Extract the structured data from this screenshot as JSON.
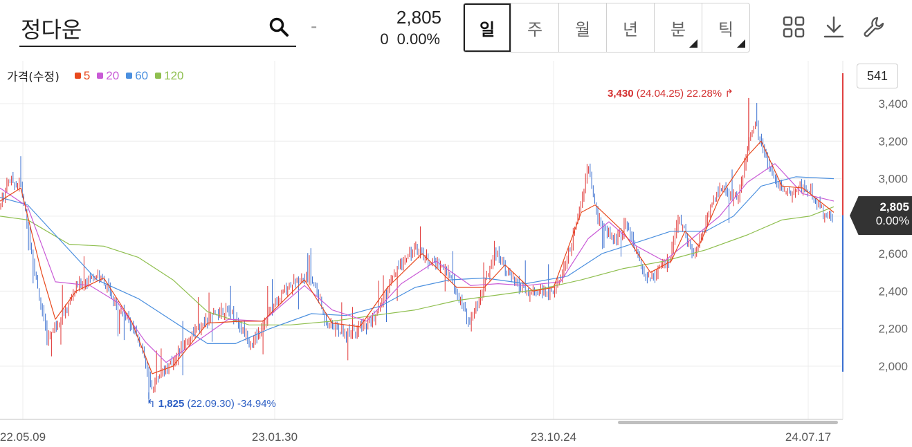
{
  "header": {
    "stock_name": "정다운",
    "dash": "-",
    "price": "2,805",
    "change": "0",
    "change_pct": "0.00%",
    "periods": [
      {
        "label": "일",
        "active": true,
        "has_menu": false
      },
      {
        "label": "주",
        "active": false,
        "has_menu": false
      },
      {
        "label": "월",
        "active": false,
        "has_menu": false
      },
      {
        "label": "년",
        "active": false,
        "has_menu": false
      },
      {
        "label": "분",
        "active": false,
        "has_menu": true
      },
      {
        "label": "틱",
        "active": false,
        "has_menu": true
      }
    ],
    "tools": [
      "grid-icon",
      "download-icon",
      "wrench-icon"
    ]
  },
  "legend": {
    "label": "가격(수정)",
    "items": [
      {
        "name": "5",
        "color": "#e8491d"
      },
      {
        "name": "20",
        "color": "#c95ad6"
      },
      {
        "name": "60",
        "color": "#4a8fdf"
      },
      {
        "name": "120",
        "color": "#8fbf4f"
      }
    ]
  },
  "count_badge": "541",
  "price_tag": {
    "price": "2,805",
    "change": "0.00%"
  },
  "annotations": {
    "high": {
      "value": "3,430",
      "detail": "(24.04.25) 22.28%",
      "arrow": "↱"
    },
    "low": {
      "value": "1,825",
      "detail": "(22.09.30) -34.94%",
      "arrow": "↰"
    }
  },
  "chart_data": {
    "type": "line",
    "ylim": [
      1800,
      3550
    ],
    "y_ticks": [
      2000,
      2200,
      2400,
      2600,
      2800,
      3000,
      3200,
      3400
    ],
    "y_tick_labels": [
      "2,000",
      "2,200",
      "2,400",
      "2,600",
      "2,800",
      "3,000",
      "3,200",
      "3,400"
    ],
    "x_ticks": [
      "22.05.09",
      "23.01.30",
      "23.10.24",
      "24.07.17"
    ],
    "colors": {
      "up": "#e03535",
      "down": "#3a6fd0",
      "ma5": "#e8491d",
      "ma20": "#c95ad6",
      "ma60": "#4a8fdf",
      "ma120": "#8fbf4f"
    },
    "price_path": [
      [
        0,
        2850
      ],
      [
        12,
        3000
      ],
      [
        30,
        2960
      ],
      [
        42,
        2700
      ],
      [
        55,
        2400
      ],
      [
        68,
        2150
      ],
      [
        80,
        2220
      ],
      [
        95,
        2300
      ],
      [
        110,
        2420
      ],
      [
        125,
        2460
      ],
      [
        140,
        2490
      ],
      [
        152,
        2440
      ],
      [
        165,
        2330
      ],
      [
        180,
        2280
      ],
      [
        195,
        2200
      ],
      [
        208,
        2050
      ],
      [
        218,
        1880
      ],
      [
        232,
        1960
      ],
      [
        245,
        2000
      ],
      [
        260,
        2080
      ],
      [
        275,
        2160
      ],
      [
        290,
        2210
      ],
      [
        305,
        2260
      ],
      [
        320,
        2300
      ],
      [
        335,
        2290
      ],
      [
        350,
        2200
      ],
      [
        365,
        2120
      ],
      [
        380,
        2230
      ],
      [
        395,
        2320
      ],
      [
        410,
        2400
      ],
      [
        425,
        2450
      ],
      [
        440,
        2480
      ],
      [
        455,
        2430
      ],
      [
        470,
        2250
      ],
      [
        485,
        2200
      ],
      [
        500,
        2170
      ],
      [
        515,
        2200
      ],
      [
        530,
        2220
      ],
      [
        545,
        2280
      ],
      [
        560,
        2400
      ],
      [
        575,
        2520
      ],
      [
        590,
        2600
      ],
      [
        605,
        2620
      ],
      [
        620,
        2560
      ],
      [
        635,
        2540
      ],
      [
        650,
        2490
      ],
      [
        665,
        2350
      ],
      [
        678,
        2230
      ],
      [
        690,
        2330
      ],
      [
        702,
        2460
      ],
      [
        715,
        2620
      ],
      [
        728,
        2550
      ],
      [
        740,
        2460
      ],
      [
        752,
        2420
      ],
      [
        765,
        2380
      ],
      [
        780,
        2400
      ],
      [
        795,
        2390
      ],
      [
        810,
        2460
      ],
      [
        825,
        2640
      ],
      [
        840,
        2860
      ],
      [
        850,
        3080
      ],
      [
        862,
        2800
      ],
      [
        876,
        2720
      ],
      [
        890,
        2680
      ],
      [
        905,
        2760
      ],
      [
        918,
        2620
      ],
      [
        930,
        2500
      ],
      [
        942,
        2470
      ],
      [
        955,
        2520
      ],
      [
        968,
        2560
      ],
      [
        980,
        2780
      ],
      [
        990,
        2720
      ],
      [
        1002,
        2580
      ],
      [
        1015,
        2720
      ],
      [
        1030,
        2880
      ],
      [
        1045,
        2960
      ],
      [
        1058,
        2900
      ],
      [
        1070,
        2940
      ],
      [
        1082,
        3200
      ],
      [
        1092,
        3290
      ],
      [
        1105,
        3120
      ],
      [
        1118,
        3020
      ],
      [
        1130,
        2960
      ],
      [
        1142,
        2900
      ],
      [
        1155,
        2960
      ],
      [
        1168,
        2940
      ],
      [
        1180,
        2880
      ],
      [
        1192,
        2800
      ],
      [
        1205,
        2805
      ]
    ],
    "ma5": [
      [
        0,
        2880
      ],
      [
        30,
        2950
      ],
      [
        60,
        2500
      ],
      [
        80,
        2250
      ],
      [
        110,
        2400
      ],
      [
        150,
        2470
      ],
      [
        190,
        2240
      ],
      [
        220,
        1960
      ],
      [
        250,
        2000
      ],
      [
        300,
        2230
      ],
      [
        350,
        2240
      ],
      [
        380,
        2240
      ],
      [
        440,
        2460
      ],
      [
        480,
        2230
      ],
      [
        520,
        2210
      ],
      [
        560,
        2420
      ],
      [
        610,
        2600
      ],
      [
        660,
        2420
      ],
      [
        700,
        2420
      ],
      [
        730,
        2540
      ],
      [
        770,
        2400
      ],
      [
        800,
        2420
      ],
      [
        840,
        2820
      ],
      [
        860,
        2860
      ],
      [
        900,
        2720
      ],
      [
        940,
        2500
      ],
      [
        970,
        2560
      ],
      [
        990,
        2720
      ],
      [
        1010,
        2640
      ],
      [
        1040,
        2900
      ],
      [
        1080,
        3120
      ],
      [
        1100,
        3200
      ],
      [
        1130,
        2960
      ],
      [
        1160,
        2950
      ],
      [
        1205,
        2820
      ]
    ],
    "ma20": [
      [
        0,
        2950
      ],
      [
        40,
        2850
      ],
      [
        80,
        2450
      ],
      [
        130,
        2430
      ],
      [
        170,
        2340
      ],
      [
        210,
        2130
      ],
      [
        240,
        2020
      ],
      [
        280,
        2120
      ],
      [
        330,
        2250
      ],
      [
        380,
        2240
      ],
      [
        440,
        2430
      ],
      [
        480,
        2300
      ],
      [
        530,
        2240
      ],
      [
        580,
        2440
      ],
      [
        630,
        2560
      ],
      [
        680,
        2430
      ],
      [
        720,
        2440
      ],
      [
        760,
        2430
      ],
      [
        810,
        2450
      ],
      [
        850,
        2680
      ],
      [
        880,
        2770
      ],
      [
        920,
        2640
      ],
      [
        960,
        2560
      ],
      [
        1000,
        2680
      ],
      [
        1040,
        2800
      ],
      [
        1080,
        2980
      ],
      [
        1120,
        3080
      ],
      [
        1160,
        2920
      ],
      [
        1205,
        2880
      ]
    ],
    "ma60": [
      [
        0,
        2900
      ],
      [
        40,
        2860
      ],
      [
        90,
        2660
      ],
      [
        140,
        2460
      ],
      [
        200,
        2360
      ],
      [
        250,
        2240
      ],
      [
        300,
        2120
      ],
      [
        340,
        2120
      ],
      [
        390,
        2200
      ],
      [
        450,
        2280
      ],
      [
        500,
        2270
      ],
      [
        550,
        2320
      ],
      [
        600,
        2420
      ],
      [
        650,
        2460
      ],
      [
        700,
        2470
      ],
      [
        760,
        2440
      ],
      [
        820,
        2480
      ],
      [
        870,
        2600
      ],
      [
        920,
        2660
      ],
      [
        970,
        2720
      ],
      [
        1020,
        2720
      ],
      [
        1060,
        2800
      ],
      [
        1100,
        2960
      ],
      [
        1150,
        3010
      ],
      [
        1205,
        3000
      ]
    ],
    "ma120": [
      [
        0,
        2800
      ],
      [
        40,
        2780
      ],
      [
        100,
        2650
      ],
      [
        150,
        2640
      ],
      [
        200,
        2580
      ],
      [
        250,
        2460
      ],
      [
        300,
        2290
      ],
      [
        360,
        2220
      ],
      [
        420,
        2220
      ],
      [
        480,
        2240
      ],
      [
        540,
        2270
      ],
      [
        600,
        2300
      ],
      [
        660,
        2350
      ],
      [
        720,
        2380
      ],
      [
        780,
        2410
      ],
      [
        840,
        2460
      ],
      [
        900,
        2520
      ],
      [
        960,
        2560
      ],
      [
        1020,
        2620
      ],
      [
        1080,
        2700
      ],
      [
        1130,
        2780
      ],
      [
        1170,
        2800
      ],
      [
        1205,
        2850
      ]
    ],
    "high_point": {
      "x": 1082,
      "y": 3430
    },
    "low_point": {
      "x": 215,
      "y": 1825
    }
  }
}
